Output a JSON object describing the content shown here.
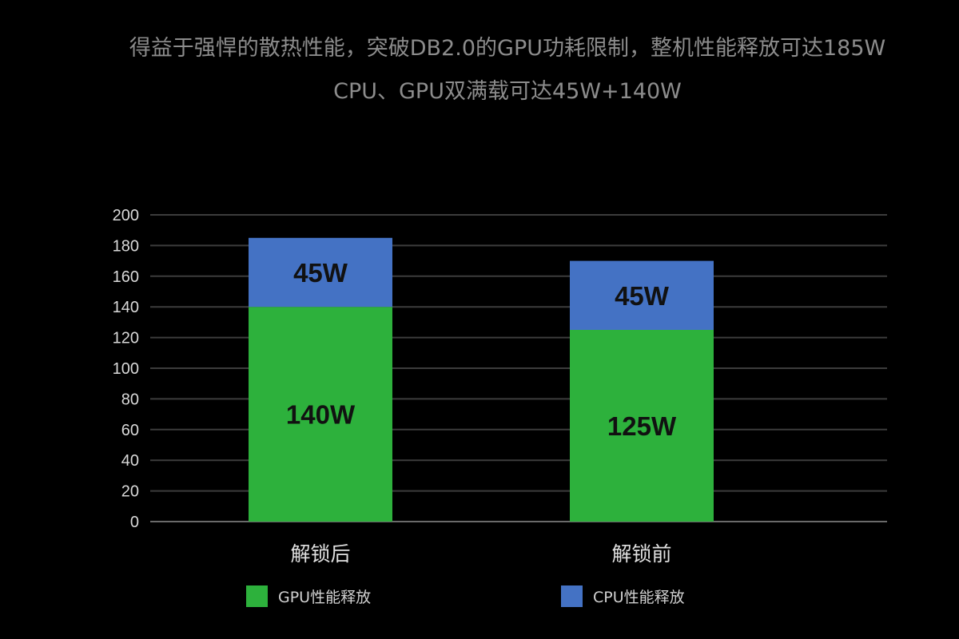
{
  "header": {
    "title": "得益于强悍的散热性能，突破DB2.0的GPU功耗限制，整机性能释放可达185W",
    "subtitle": "CPU、GPU双满载可达45W+140W"
  },
  "colors": {
    "gpu": "#2db13c",
    "cpu": "#4472c4",
    "grid": "#3c3c3c",
    "text": "#d9d9d9"
  },
  "chart_data": {
    "type": "bar",
    "stacked": true,
    "categories": [
      "解锁后",
      "解锁前"
    ],
    "series": [
      {
        "name": "GPU性能释放",
        "values": [
          140,
          125
        ],
        "labels": [
          "140W",
          "125W"
        ]
      },
      {
        "name": "CPU性能释放",
        "values": [
          45,
          45
        ],
        "labels": [
          "45W",
          "45W"
        ]
      }
    ],
    "ylim": [
      0,
      200
    ],
    "yticks": [
      0,
      20,
      40,
      60,
      80,
      100,
      120,
      140,
      160,
      180,
      200
    ],
    "grid": true,
    "legend": "bottom"
  }
}
